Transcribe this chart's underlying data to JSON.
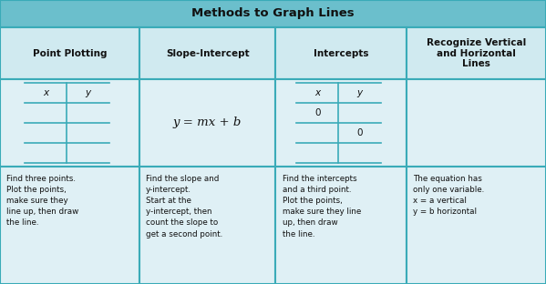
{
  "title": "Methods to Graph Lines",
  "title_bg": "#6bbfcc",
  "header_bg": "#d0eaf0",
  "cell_bg": "#dff0f5",
  "desc_bg": "#dff0f5",
  "border_color": "#3aabb8",
  "tline_col": "#3aabb8",
  "col_headers": [
    "Point Plotting",
    "Slope-Intercept",
    "Intercepts",
    "Recognize Vertical\nand Horizontal\nLines"
  ],
  "col1_desc": "Find three points.\nPlot the points,\nmake sure they\nline up, then draw\nthe line.",
  "col2_desc_line1": "Find the slope and",
  "col2_desc_y": "y",
  "col2_desc_line2": "-intercept.\nStart at the\n",
  "col2_desc_y2": "y",
  "col2_desc_line3": "-intercept, then\ncount the slope to\nget a second point.",
  "col3_desc": "Find the intercepts\nand a third point.\nPlot the points,\nmake sure they line\nup, then draw\nthe line.",
  "col4_desc_line1": "The equation has\nonly one variable.\n",
  "col4_desc_line2": "x = a",
  "col4_desc_line3": " vertical\n",
  "col4_desc_line4": "y = b",
  "col4_desc_line5": " horizontal",
  "col2_formula": "y = mx + b",
  "figsize": [
    5.99,
    3.12
  ],
  "dpi": 100
}
